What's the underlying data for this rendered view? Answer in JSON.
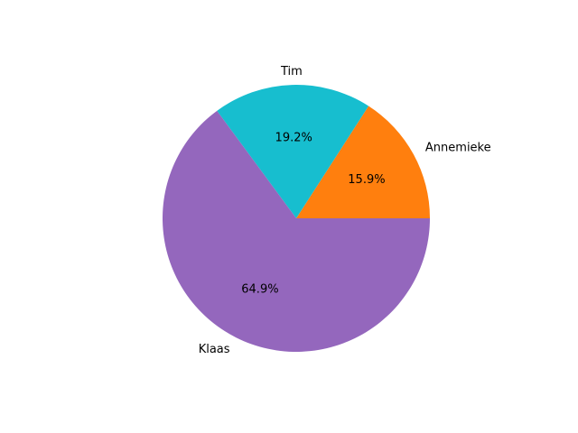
{
  "chart_data": {
    "type": "pie",
    "categories": [
      "Annemieke",
      "Tim",
      "Klaas"
    ],
    "values": [
      15.9,
      19.2,
      64.9
    ],
    "value_labels": [
      "15.9%",
      "19.2%",
      "64.9%"
    ],
    "colors": [
      "#ff7f0e",
      "#17becf",
      "#9467bd"
    ],
    "start_angle_deg": 0,
    "direction": "counterclockwise",
    "title": ""
  }
}
